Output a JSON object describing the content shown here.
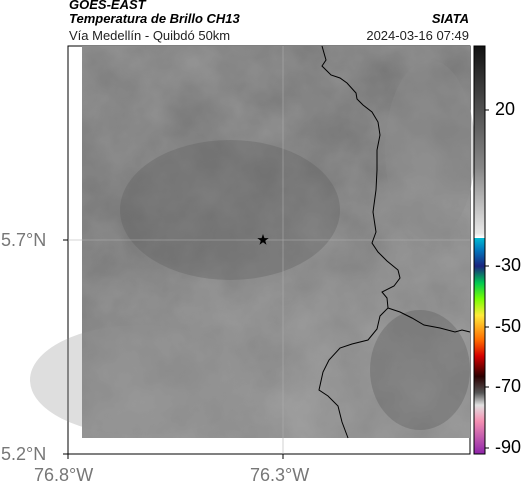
{
  "header": {
    "satellite": "GOES-EAST",
    "product": "Temperatura de Brillo CH13",
    "agency": "SIATA",
    "region": "Vía Medellín - Quibdó 50km",
    "timestamp": "2024-03-16 07:49"
  },
  "map": {
    "lat_labels": [
      "5.7°N",
      "5.2°N"
    ],
    "lon_labels": [
      "76.8°W",
      "76.3°W"
    ],
    "marker": "star-marker",
    "gridlines": true
  },
  "colorbar": {
    "ticks": [
      "20",
      "-30",
      "-50",
      "-70",
      "-90"
    ],
    "colors": [
      "#1a1a1a",
      "#bfbfbf",
      "#00bcd4",
      "#1a237e",
      "#00c853",
      "#ffeb3b",
      "#ff6d00",
      "#d50000",
      "#3e0000",
      "#e0e0e0",
      "#ab47bc"
    ]
  }
}
